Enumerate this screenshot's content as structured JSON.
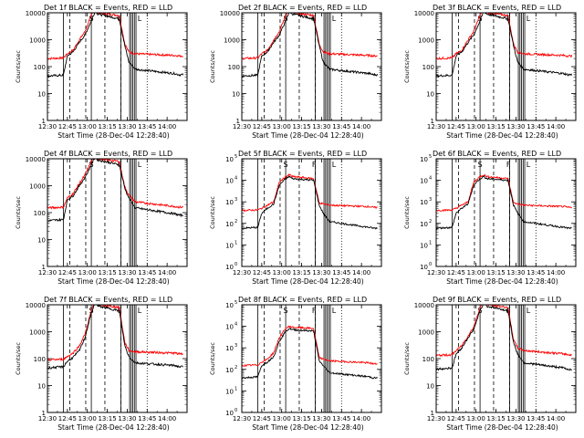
{
  "colors": {
    "background": "#ffffff",
    "axes": "#000000",
    "events": "#000000",
    "lld": "#ff0000"
  },
  "shared": {
    "xticks": [
      "12:30",
      "12:45",
      "13:00",
      "13:15",
      "13:30",
      "13:45",
      "14:00"
    ],
    "xlabel": "Start Time (28-Dec-04 12:28:40)",
    "ylabel": "Counts/sec",
    "series_legend": "BLACK = Events, RED = LLD",
    "markers": [
      "S",
      "F",
      "L"
    ]
  },
  "chart_data": [
    {
      "type": "line",
      "title": "Det 1f BLACK = Events, RED = LLD",
      "ytick_style": "plain",
      "yticks": [
        "1",
        "10",
        "100",
        "1000",
        "10000"
      ],
      "ylim": [
        1,
        10000
      ],
      "xlim": [
        12.5,
        14.25
      ],
      "x": [
        12.5,
        12.7,
        12.75,
        12.82,
        12.9,
        12.97,
        13.05,
        13.1,
        13.13,
        13.4,
        13.47,
        13.52,
        13.6,
        14.1,
        14.15
      ],
      "series": [
        {
          "values": [
            200,
            210,
            300,
            400,
            1000,
            2000,
            8000,
            15000,
            10000,
            8000,
            700,
            350,
            300,
            260,
            250
          ]
        },
        {
          "values": [
            45,
            48,
            250,
            350,
            800,
            1500,
            5000,
            12000,
            9000,
            6000,
            600,
            150,
            80,
            55,
            50
          ]
        }
      ]
    },
    {
      "type": "line",
      "title": "Det 2f BLACK = Events, RED = LLD",
      "ytick_style": "plain",
      "yticks": [
        "1",
        "10",
        "100",
        "1000",
        "10000"
      ],
      "ylim": [
        1,
        10000
      ],
      "xlim": [
        12.5,
        14.25
      ],
      "x": [
        12.5,
        12.7,
        12.75,
        12.82,
        12.9,
        12.97,
        13.05,
        13.1,
        13.13,
        13.4,
        13.47,
        13.52,
        13.6,
        14.1,
        14.15
      ],
      "series": [
        {
          "values": [
            200,
            210,
            300,
            400,
            1000,
            2000,
            8000,
            15000,
            10000,
            8000,
            700,
            350,
            300,
            260,
            250
          ]
        },
        {
          "values": [
            45,
            48,
            250,
            350,
            800,
            1500,
            5000,
            12000,
            9000,
            6000,
            600,
            150,
            80,
            55,
            50
          ]
        }
      ]
    },
    {
      "type": "line",
      "title": "Det 3f BLACK = Events, RED = LLD",
      "ytick_style": "plain",
      "yticks": [
        "1",
        "10",
        "100",
        "1000",
        "10000"
      ],
      "ylim": [
        1,
        10000
      ],
      "xlim": [
        12.5,
        14.25
      ],
      "x": [
        12.5,
        12.7,
        12.75,
        12.82,
        12.9,
        12.97,
        13.05,
        13.1,
        13.13,
        13.4,
        13.47,
        13.52,
        13.6,
        14.1,
        14.15
      ],
      "series": [
        {
          "values": [
            200,
            210,
            300,
            400,
            1000,
            2000,
            8000,
            15000,
            10000,
            8000,
            700,
            350,
            300,
            260,
            250
          ]
        },
        {
          "values": [
            45,
            48,
            250,
            350,
            800,
            1500,
            5000,
            12000,
            9000,
            6000,
            600,
            150,
            80,
            55,
            50
          ]
        }
      ]
    },
    {
      "type": "line",
      "title": "Det 4f BLACK = Events, RED = LLD",
      "ytick_style": "plain",
      "yticks": [
        "1",
        "10",
        "100",
        "1000",
        "10000"
      ],
      "ylim": [
        1,
        10000
      ],
      "xlim": [
        12.5,
        14.25
      ],
      "x": [
        12.5,
        12.7,
        12.75,
        12.82,
        12.9,
        12.97,
        13.05,
        13.1,
        13.13,
        13.4,
        13.47,
        13.52,
        13.6,
        14.1,
        14.15
      ],
      "series": [
        {
          "values": [
            150,
            160,
            350,
            500,
            1200,
            2500,
            8000,
            15000,
            10000,
            8000,
            900,
            450,
            250,
            170,
            160
          ]
        },
        {
          "values": [
            50,
            55,
            300,
            420,
            1000,
            2000,
            6000,
            12000,
            9000,
            6000,
            800,
            350,
            150,
            90,
            80
          ]
        }
      ]
    },
    {
      "type": "line",
      "title": "Det 5f BLACK = Events, RED = LLD",
      "ytick_style": "power",
      "yticks": [
        "10^0",
        "10^1",
        "10^2",
        "10^3",
        "10^4",
        "10^5"
      ],
      "ylim": [
        1,
        100000
      ],
      "xlim": [
        12.5,
        14.25
      ],
      "x": [
        12.5,
        12.7,
        12.75,
        12.82,
        12.9,
        12.97,
        13.05,
        13.1,
        13.13,
        13.4,
        13.47,
        13.52,
        13.6,
        14.1,
        14.15
      ],
      "series": [
        {
          "values": [
            400,
            420,
            500,
            700,
            1000,
            8000,
            15000,
            18000,
            15000,
            12000,
            900,
            800,
            700,
            600,
            550
          ]
        },
        {
          "values": [
            60,
            65,
            300,
            500,
            800,
            6000,
            12000,
            15000,
            12000,
            10000,
            700,
            300,
            120,
            65,
            60
          ]
        }
      ]
    },
    {
      "type": "line",
      "title": "Det 6f BLACK = Events, RED = LLD",
      "ytick_style": "power",
      "yticks": [
        "10^0",
        "10^1",
        "10^2",
        "10^3",
        "10^4",
        "10^5"
      ],
      "ylim": [
        1,
        100000
      ],
      "xlim": [
        12.5,
        14.25
      ],
      "x": [
        12.5,
        12.7,
        12.75,
        12.82,
        12.9,
        12.97,
        13.05,
        13.1,
        13.13,
        13.4,
        13.47,
        13.52,
        13.6,
        14.1,
        14.15
      ],
      "series": [
        {
          "values": [
            400,
            420,
            500,
            700,
            1000,
            8000,
            15000,
            18000,
            15000,
            12000,
            900,
            800,
            700,
            600,
            550
          ]
        },
        {
          "values": [
            60,
            65,
            300,
            500,
            800,
            6000,
            12000,
            15000,
            12000,
            10000,
            700,
            300,
            120,
            65,
            60
          ]
        }
      ]
    },
    {
      "type": "line",
      "title": "Det 7f BLACK = Events, RED = LLD",
      "ytick_style": "plain",
      "yticks": [
        "1",
        "10",
        "100",
        "1000",
        "10000"
      ],
      "ylim": [
        1,
        10000
      ],
      "xlim": [
        12.5,
        14.25
      ],
      "x": [
        12.5,
        12.7,
        12.75,
        12.82,
        12.9,
        12.97,
        13.05,
        13.1,
        13.13,
        13.4,
        13.47,
        13.52,
        13.6,
        14.1,
        14.15
      ],
      "series": [
        {
          "values": [
            90,
            95,
            120,
            160,
            300,
            800,
            6000,
            15000,
            10000,
            8000,
            400,
            200,
            180,
            160,
            150
          ]
        },
        {
          "values": [
            45,
            50,
            80,
            110,
            200,
            600,
            5000,
            12000,
            9000,
            6000,
            300,
            120,
            70,
            55,
            50
          ]
        }
      ]
    },
    {
      "type": "line",
      "title": "Det 8f BLACK = Events, RED = LLD",
      "ytick_style": "power",
      "yticks": [
        "10^0",
        "10^1",
        "10^2",
        "10^3",
        "10^4",
        "10^5"
      ],
      "ylim": [
        1,
        100000
      ],
      "xlim": [
        12.5,
        14.25
      ],
      "x": [
        12.5,
        12.7,
        12.75,
        12.82,
        12.9,
        12.97,
        13.05,
        13.1,
        13.13,
        13.4,
        13.47,
        13.52,
        13.6,
        14.1,
        14.15
      ],
      "series": [
        {
          "values": [
            150,
            160,
            220,
            300,
            600,
            3000,
            8000,
            10000,
            9000,
            8000,
            350,
            300,
            250,
            200,
            180
          ]
        },
        {
          "values": [
            40,
            45,
            150,
            220,
            400,
            2000,
            6000,
            8000,
            7000,
            6000,
            250,
            150,
            70,
            45,
            40
          ]
        }
      ]
    },
    {
      "type": "line",
      "title": "Det 9f BLACK = Events, RED = LLD",
      "ytick_style": "plain",
      "yticks": [
        "1",
        "10",
        "100",
        "1000",
        "10000"
      ],
      "ylim": [
        1,
        10000
      ],
      "xlim": [
        12.5,
        14.25
      ],
      "x": [
        12.5,
        12.7,
        12.75,
        12.82,
        12.9,
        12.97,
        13.05,
        13.1,
        13.13,
        13.4,
        13.47,
        13.52,
        13.6,
        14.1,
        14.15
      ],
      "series": [
        {
          "values": [
            130,
            140,
            200,
            300,
            700,
            1500,
            8000,
            15000,
            10000,
            8000,
            500,
            250,
            200,
            150,
            140
          ]
        },
        {
          "values": [
            40,
            45,
            150,
            250,
            600,
            1200,
            6000,
            12000,
            9000,
            6000,
            400,
            150,
            70,
            45,
            40
          ]
        }
      ]
    }
  ]
}
